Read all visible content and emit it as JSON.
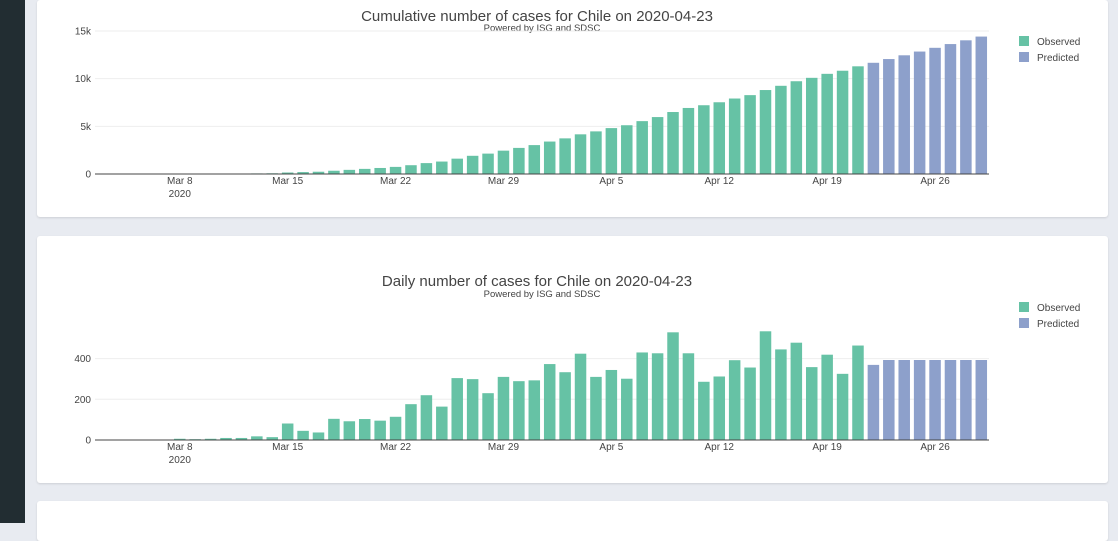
{
  "colors": {
    "observed": "#66c2a5",
    "predicted": "#8da0cb",
    "sidebar": "#222d32",
    "background": "#e8ebf1"
  },
  "chart_data": [
    {
      "type": "bar",
      "title": "Cumulative number of cases for Chile on 2020-04-23",
      "subtitle": "Powered by ISG and SDSC",
      "x_start": "2020-03-03",
      "x_ticks": [
        "Mar 8",
        "Mar 15",
        "Mar 22",
        "Mar 29",
        "Apr 5",
        "Apr 12",
        "Apr 19",
        "Apr 26"
      ],
      "x_tick_year": "2020",
      "y_ticks": [
        {
          "value": 0,
          "label": "0"
        },
        {
          "value": 5000,
          "label": "5k"
        },
        {
          "value": 10000,
          "label": "10k"
        },
        {
          "value": 15000,
          "label": "15k"
        }
      ],
      "ylim": [
        0,
        15000
      ],
      "grid": true,
      "legend_position": "top-right",
      "series": [
        {
          "name": "Observed",
          "values": [
            1,
            1,
            3,
            5,
            7,
            13,
            17,
            23,
            33,
            43,
            61,
            75,
            156,
            201,
            238,
            342,
            434,
            537,
            632,
            746,
            922,
            1142,
            1306,
            1610,
            1909,
            2139,
            2449,
            2738,
            3031,
            3404,
            3737,
            4161,
            4471,
            4815,
            5116,
            5546,
            5972,
            6501,
            6927,
            7213,
            7525,
            7917,
            8273,
            8807,
            9252,
            9730,
            10088,
            10507,
            10832,
            11296
          ]
        },
        {
          "name": "Predicted",
          "values": [
            11665,
            12058,
            12451,
            12844,
            13237,
            13630,
            14023,
            14416
          ]
        }
      ]
    },
    {
      "type": "bar",
      "title": "Daily number of cases for Chile on 2020-04-23",
      "subtitle": "Powered by ISG and SDSC",
      "x_start": "2020-03-03",
      "x_ticks": [
        "Mar 8",
        "Mar 15",
        "Mar 22",
        "Mar 29",
        "Apr 5",
        "Apr 12",
        "Apr 19",
        "Apr 26"
      ],
      "x_tick_year": "2020",
      "y_ticks": [
        {
          "value": 0,
          "label": "0"
        },
        {
          "value": 200,
          "label": "200"
        },
        {
          "value": 400,
          "label": "400"
        }
      ],
      "ylim": [
        0,
        560
      ],
      "grid": true,
      "legend_position": "top-right",
      "series": [
        {
          "name": "Observed",
          "values": [
            1,
            0,
            2,
            2,
            2,
            6,
            4,
            6,
            10,
            10,
            18,
            14,
            81,
            45,
            37,
            104,
            92,
            103,
            95,
            114,
            176,
            220,
            164,
            304,
            299,
            230,
            310,
            289,
            293,
            373,
            333,
            424,
            310,
            344,
            301,
            430,
            426,
            529,
            426,
            286,
            312,
            392,
            356,
            534,
            445,
            478,
            358,
            419,
            325,
            464
          ]
        },
        {
          "name": "Predicted",
          "values": [
            369,
            393,
            393,
            393,
            393,
            393,
            393,
            393
          ]
        }
      ]
    }
  ]
}
